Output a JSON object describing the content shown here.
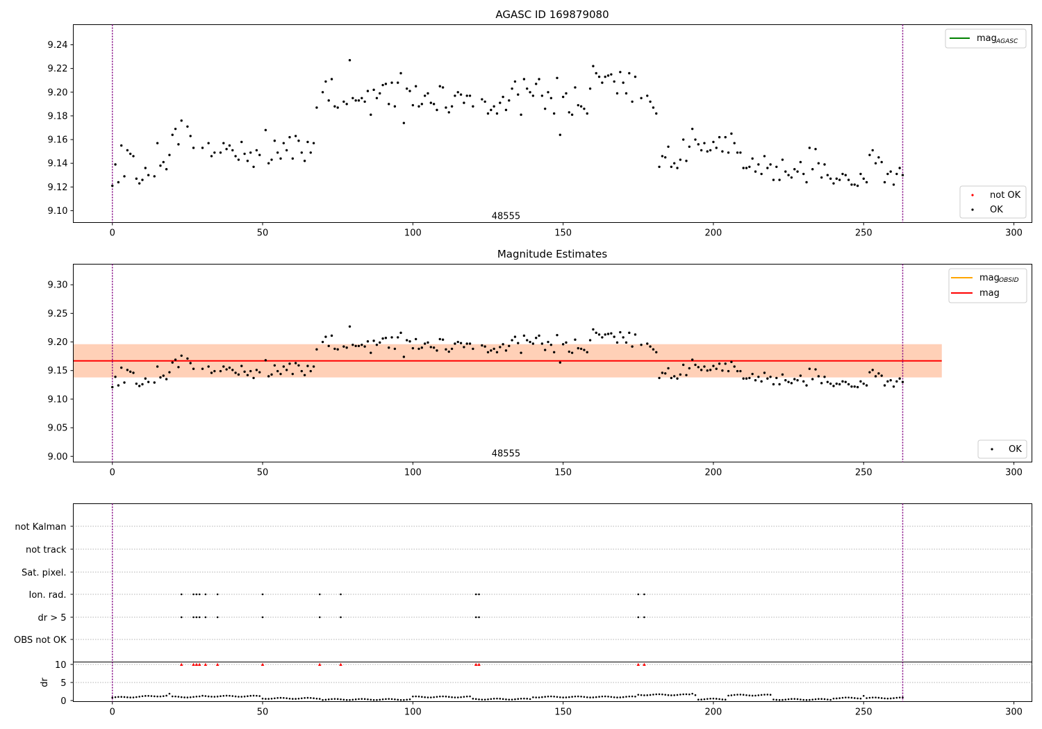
{
  "chart_data": [
    {
      "type": "scatter",
      "title": "AGASC ID 169879080",
      "xlabel": "",
      "ylabel": "",
      "xlim": [
        -13,
        306
      ],
      "ylim": [
        9.09,
        9.257
      ],
      "xticks": [
        "0",
        "50",
        "100",
        "150",
        "200",
        "250",
        "300"
      ],
      "yticks": [
        "9.10",
        "9.12",
        "9.14",
        "9.16",
        "9.18",
        "9.20",
        "9.22",
        "9.24"
      ],
      "vlines_x": [
        0,
        263
      ],
      "annotation": {
        "text": "48555",
        "x": 131,
        "y": 9.096
      },
      "legend_upper": {
        "placement": "top-right",
        "entries": [
          {
            "label": "mag",
            "sub": "AGASC",
            "color": "#008000"
          }
        ]
      },
      "legend_lower": {
        "placement": "bottom-right",
        "entries": [
          {
            "label": "not OK",
            "color": "#ff0000"
          },
          {
            "label": "OK",
            "color": "#000000"
          }
        ]
      },
      "series": [
        {
          "name": "OK",
          "color": "#000000",
          "x": [],
          "y": []
        },
        {
          "name": "not OK",
          "color": "#ff0000",
          "x": [],
          "y": []
        }
      ]
    },
    {
      "type": "scatter",
      "title": "Magnitude Estimates",
      "xlabel": "",
      "ylabel": "",
      "xlim": [
        -13,
        306
      ],
      "ylim": [
        8.99,
        9.336
      ],
      "xticks": [
        "0",
        "50",
        "100",
        "150",
        "200",
        "250",
        "300"
      ],
      "yticks": [
        "9.00",
        "9.05",
        "9.10",
        "9.15",
        "9.20",
        "9.25",
        "9.30"
      ],
      "vlines_x": [
        0,
        263
      ],
      "annotation": {
        "text": "48555",
        "x": 131,
        "y": 9.006
      },
      "mean_mag": 9.167,
      "outer_band": [
        9.138,
        9.196
      ],
      "inner_band": [
        9.138,
        9.196
      ],
      "band_x": [
        -13,
        276
      ],
      "legend_upper": {
        "placement": "top-right",
        "entries": [
          {
            "label": "mag",
            "sub": "OBSID",
            "color": "#ffa500"
          },
          {
            "label": "mag",
            "sub": "",
            "color": "#ff0000"
          }
        ]
      },
      "legend_lower": {
        "placement": "bottom-right",
        "entries": [
          {
            "label": "OK",
            "color": "#000000"
          }
        ]
      },
      "series": [
        {
          "name": "OK",
          "color": "#000000",
          "x": [],
          "y": []
        }
      ]
    },
    {
      "type": "scatter",
      "title": "",
      "xlabel": "",
      "ylabel": "",
      "xlim": [
        -13,
        306
      ],
      "xticks": [
        "0",
        "50",
        "100",
        "150",
        "200",
        "250",
        "300"
      ],
      "flag_labels": [
        "not Kalman",
        "not track",
        "Sat. pixel.",
        "Ion. rad.",
        "dr > 5",
        "OBS not OK"
      ],
      "flag_points_x": {
        "Ion. rad.": [
          23,
          27,
          28,
          29,
          31,
          35,
          50,
          69,
          76,
          121,
          122,
          175,
          177
        ],
        "dr > 5": [
          23,
          27,
          28,
          29,
          31,
          35,
          50,
          69,
          76,
          121,
          122,
          175,
          177
        ]
      },
      "vlines_x": [
        0,
        263
      ]
    },
    {
      "type": "scatter",
      "title": "",
      "xlabel": "",
      "ylabel": "dr",
      "xlim": [
        -13,
        306
      ],
      "ylim": [
        0,
        10
      ],
      "yticks": [
        "0",
        "5",
        "10"
      ],
      "xticks": [
        "0",
        "50",
        "100",
        "150",
        "200",
        "250",
        "300"
      ],
      "vlines_x": [
        0,
        263
      ],
      "red_markers_x": [
        23,
        27,
        28,
        29,
        31,
        35,
        50,
        69,
        76,
        121,
        122,
        175,
        177
      ],
      "series": [
        {
          "name": "dr",
          "color": "#000000",
          "x": [],
          "y": []
        }
      ]
    }
  ]
}
